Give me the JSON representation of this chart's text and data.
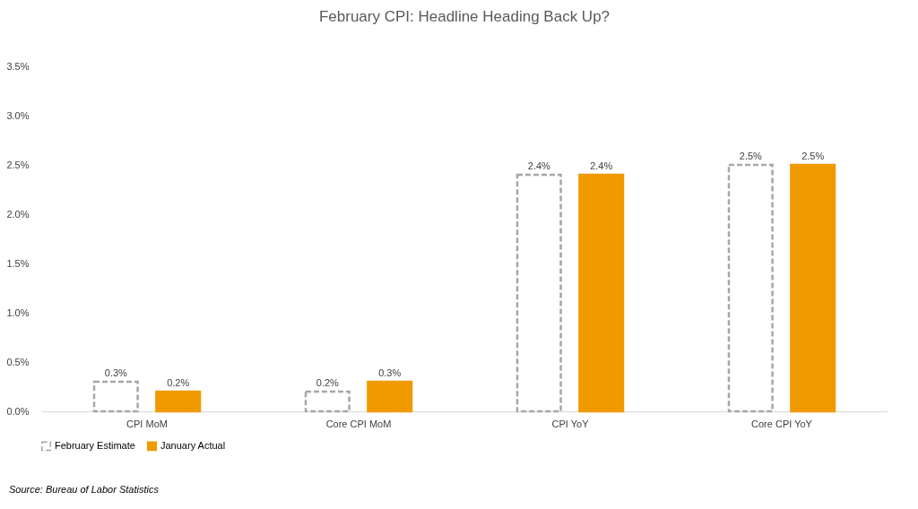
{
  "chart_data": {
    "type": "bar",
    "title": "February CPI: Headline Heading Back Up?",
    "categories": [
      "CPI MoM",
      "Core CPI MoM",
      "CPI YoY",
      "Core CPI YoY"
    ],
    "series": [
      {
        "name": "February Estimate",
        "color": "#a6a6a6",
        "line_style": "dashed",
        "values": [
          0.3,
          0.2,
          2.4,
          2.5
        ],
        "value_labels": [
          "0.3%",
          "0.2%",
          "2.4%",
          "2.5%"
        ]
      },
      {
        "name": "January Actual",
        "color": "#f09a00",
        "values": [
          0.2,
          0.3,
          2.4,
          2.5
        ],
        "value_labels": [
          "0.2%",
          "0.3%",
          "2.4%",
          "2.5%"
        ]
      }
    ],
    "ylim": [
      0,
      3.5
    ],
    "yticks": [
      {
        "value": 0,
        "label": "0.0%"
      },
      {
        "value": 0.5,
        "label": "0.5%"
      },
      {
        "value": 1,
        "label": "1.0%"
      },
      {
        "value": 1.5,
        "label": "1.5%"
      },
      {
        "value": 2,
        "label": "2.0%"
      },
      {
        "value": 2.5,
        "label": "2.5%"
      },
      {
        "value": 3,
        "label": "3.0%"
      },
      {
        "value": 3.5,
        "label": "3.5%"
      }
    ],
    "grid": false,
    "legend": "bottom",
    "annotations": [
      "Source: Bureau of Labor Statistics"
    ]
  }
}
